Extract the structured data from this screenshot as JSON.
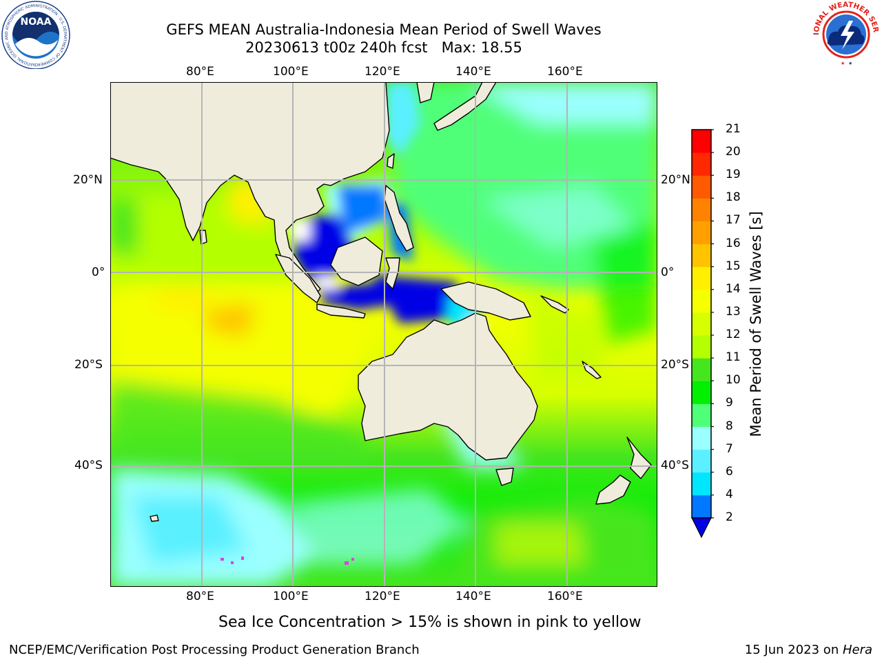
{
  "title": {
    "line1": "GEFS MEAN Australia-Indonesia Mean Period of Swell Waves",
    "line2": "20230613 t00z 240h fcst   Max: 18.55"
  },
  "map": {
    "lon_ticks": [
      "80°E",
      "100°E",
      "120°E",
      "140°E",
      "160°E"
    ],
    "lat_ticks": [
      "20°N",
      "0°",
      "20°S",
      "40°S"
    ],
    "land_color": "#efecdc",
    "grid_color": "#b4b4b4"
  },
  "colorbar": {
    "label": "Mean Period of Swell Waves [s]",
    "ticks": [
      "2",
      "4",
      "6",
      "7",
      "8",
      "9",
      "10",
      "11",
      "12",
      "13",
      "14",
      "15",
      "16",
      "17",
      "18",
      "19",
      "20",
      "21"
    ],
    "colors": [
      "#0000e6",
      "#0078ff",
      "#00e6ff",
      "#5af0ff",
      "#9bffff",
      "#50ff78",
      "#00f000",
      "#46e61e",
      "#b4ff00",
      "#d7ff00",
      "#f5ff00",
      "#fff000",
      "#ffc300",
      "#ffa000",
      "#ff8200",
      "#ff5a00",
      "#ff2800",
      "#ff0000"
    ]
  },
  "note": "Sea Ice Concentration > 15% is shown in pink to yellow",
  "footer": {
    "left": "NCEP/EMC/Verification Post Processing Product Generation Branch",
    "right_prefix": "15 Jun 2023 on ",
    "right_host": "Hera"
  },
  "logos": {
    "left": "NOAA",
    "left_ring": "NATIONAL OCEANIC AND ATMOSPHERIC ADMINISTRATION · U.S. DEPARTMENT OF COMMERCE",
    "right_ring": "NATIONAL WEATHER SERVICE"
  }
}
